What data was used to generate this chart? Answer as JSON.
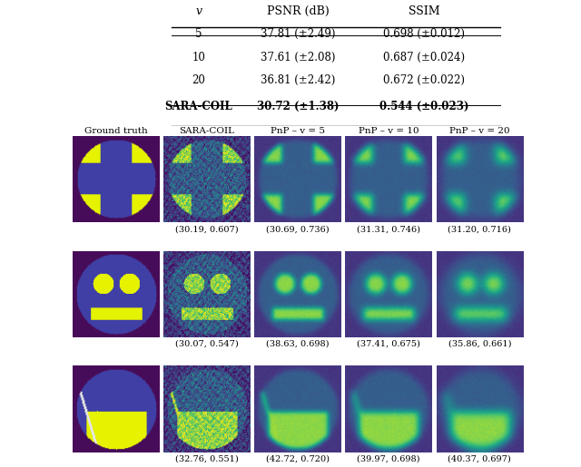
{
  "table_headers": [
    "v",
    "PSNR (dB)",
    "SSIM"
  ],
  "table_rows": [
    [
      "5",
      "37.81 (±2.49)",
      "0.698 (±0.012)"
    ],
    [
      "10",
      "37.61 (±2.08)",
      "0.687 (±0.024)"
    ],
    [
      "20",
      "36.81 (±2.42)",
      "0.672 (±0.022)"
    ],
    [
      "SARA-COIL",
      "30.72 (±1.38)",
      "0.544 (±0.023)"
    ]
  ],
  "col_titles": [
    "Ground truth",
    "SARA-COIL",
    "PnP – v = 5",
    "PnP – v = 10",
    "PnP – v = 20"
  ],
  "captions": [
    [
      "",
      "(30.19, 0.607)",
      "(30.69, 0.736)",
      "(31.31, 0.746)",
      "(31.20, 0.716)"
    ],
    [
      "",
      "(30.07, 0.547)",
      "(38.63, 0.698)",
      "(37.41, 0.675)",
      "(35.86, 0.661)"
    ],
    [
      "",
      "(32.76, 0.551)",
      "(42.72, 0.720)",
      "(39.97, 0.698)",
      "(40.37, 0.697)"
    ]
  ],
  "bg_color": [
    0.5,
    0.0,
    0.5
  ],
  "gt_yellow": [
    0.9,
    0.95,
    0.0
  ],
  "gt_blue": [
    0.25,
    0.25,
    0.65
  ]
}
